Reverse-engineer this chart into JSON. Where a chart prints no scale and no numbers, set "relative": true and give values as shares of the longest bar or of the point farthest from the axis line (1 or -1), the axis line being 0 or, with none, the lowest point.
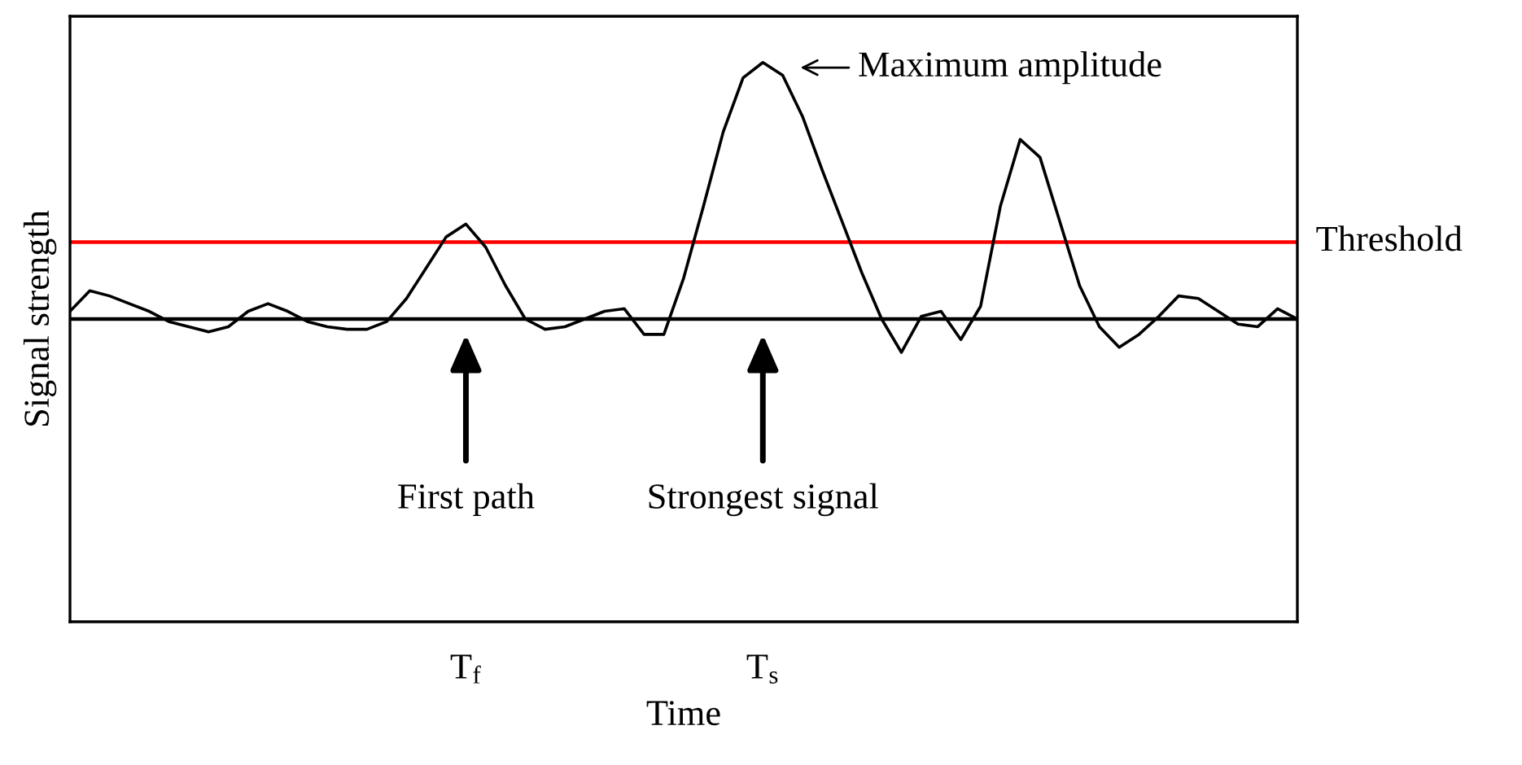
{
  "chart_data": {
    "type": "line",
    "relative": true,
    "xlabel": "Time",
    "ylabel": "Signal strength",
    "categories": [
      null,
      null,
      null,
      null,
      null,
      null,
      null,
      null,
      null,
      null,
      null,
      null,
      null,
      null,
      null,
      null,
      null,
      null,
      null,
      null,
      "T$_{f}$",
      null,
      null,
      null,
      null,
      null,
      null,
      null,
      null,
      null,
      null,
      null,
      null,
      null,
      null,
      "T$_{s}$",
      null,
      null,
      null,
      null,
      null,
      null,
      null,
      null,
      null,
      null,
      null,
      null,
      null,
      null,
      null,
      null,
      null,
      null,
      null,
      null,
      null,
      null,
      null,
      null,
      null,
      null,
      null
    ],
    "series": [
      {
        "color": "#000000",
        "values": [
          0.03,
          0.11,
          0.09,
          0.06,
          0.03,
          -0.01,
          -0.03,
          -0.05,
          -0.03,
          0.03,
          0.06,
          0.03,
          -0.01,
          -0.03,
          -0.04,
          -0.04,
          -0.01,
          0.08,
          0.2,
          0.32,
          0.37,
          0.28,
          0.13,
          0,
          -0.04,
          -0.03,
          0,
          0.03,
          0.04,
          -0.06,
          -0.06,
          0.16,
          0.44,
          0.73,
          0.94,
          1,
          0.95,
          0.79,
          0.58,
          0.38,
          0.18,
          0,
          -0.13,
          0.01,
          0.03,
          -0.08,
          0.05,
          0.44,
          0.7,
          0.63,
          0.38,
          0.13,
          -0.03,
          -0.11,
          -0.06,
          0.01,
          0.09,
          0.08,
          0.03,
          -0.02,
          -0.03,
          0.04,
          0
        ]
      }
    ],
    "ref_lines": [
      {
        "axis": "y",
        "value": 0,
        "color": "#000000"
      },
      {
        "axis": "y",
        "value": 0.3,
        "label": "Threshold",
        "color": "#ff0000"
      }
    ],
    "annotations": [
      {
        "text": "Maximum amplitude",
        "x": "T$_{s}$",
        "y": 1
      },
      {
        "text": "First path",
        "x": "T$_{f}$"
      },
      {
        "text": "Strongest signal",
        "x": "T$_{s}$"
      }
    ],
    "line_style": "solid",
    "grid": false,
    "legend": false
  }
}
